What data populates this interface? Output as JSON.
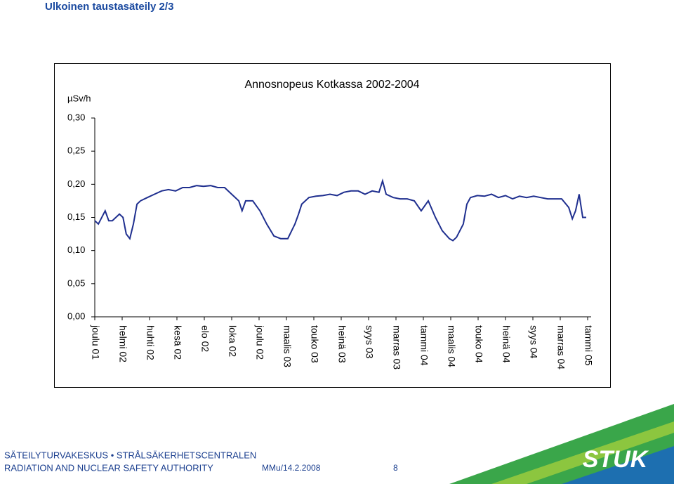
{
  "header": {
    "title": "Ulkoinen taustasäteily 2/3"
  },
  "chart_data": {
    "type": "line",
    "title": "Annosnopeus Kotkassa 2002-2004",
    "y_label": "µSv/h",
    "xlim": [
      0,
      18
    ],
    "xticks": [
      {
        "value": 0,
        "label": "joulu 01"
      },
      {
        "value": 1,
        "label": "helmi 02"
      },
      {
        "value": 2,
        "label": "huhti 02"
      },
      {
        "value": 3,
        "label": "kesä 02"
      },
      {
        "value": 4,
        "label": "elo 02"
      },
      {
        "value": 5,
        "label": "loka 02"
      },
      {
        "value": 6,
        "label": "joulu 02"
      },
      {
        "value": 7,
        "label": "maalis 03"
      },
      {
        "value": 8,
        "label": "touko 03"
      },
      {
        "value": 9,
        "label": "heinä 03"
      },
      {
        "value": 10,
        "label": "syys 03"
      },
      {
        "value": 11,
        "label": "marras 03"
      },
      {
        "value": 12,
        "label": "tammi 04"
      },
      {
        "value": 13,
        "label": "maalis 04"
      },
      {
        "value": 14,
        "label": "touko 04"
      },
      {
        "value": 15,
        "label": "heinä 04"
      },
      {
        "value": 16,
        "label": "syys 04"
      },
      {
        "value": 17,
        "label": "marras 04"
      },
      {
        "value": 18,
        "label": "tammi 05"
      }
    ],
    "ylim": [
      0,
      0.3
    ],
    "yticks": [
      {
        "value": 0,
        "label": "0,00"
      },
      {
        "value": 0.05,
        "label": "0,05"
      },
      {
        "value": 0.1,
        "label": "0,10"
      },
      {
        "value": 0.15,
        "label": "0,15"
      },
      {
        "value": 0.2,
        "label": "0,20"
      },
      {
        "value": 0.25,
        "label": "0,25"
      },
      {
        "value": 0.3,
        "label": "0,30"
      }
    ],
    "color": "#1f2f8f",
    "x": [
      0,
      0.13,
      0.38,
      0.51,
      0.64,
      0.9,
      1.03,
      1.15,
      1.28,
      1.41,
      1.54,
      1.67,
      1.92,
      2.18,
      2.44,
      2.69,
      2.95,
      3.21,
      3.46,
      3.72,
      3.97,
      4.23,
      4.49,
      4.74,
      5,
      5.26,
      5.38,
      5.51,
      5.77,
      6.03,
      6.28,
      6.54,
      6.79,
      7.05,
      7.31,
      7.44,
      7.56,
      7.82,
      8.08,
      8.33,
      8.59,
      8.85,
      9.1,
      9.36,
      9.62,
      9.87,
      10.13,
      10.38,
      10.51,
      10.64,
      10.9,
      11.15,
      11.41,
      11.67,
      11.92,
      12.18,
      12.44,
      12.69,
      12.95,
      13.08,
      13.21,
      13.46,
      13.59,
      13.72,
      13.97,
      14.23,
      14.49,
      14.74,
      15,
      15.26,
      15.51,
      15.77,
      16.03,
      16.28,
      16.54,
      16.79,
      17.05,
      17.31,
      17.44,
      17.56,
      17.69,
      17.82,
      17.95
    ],
    "values": [
      0.145,
      0.14,
      0.16,
      0.145,
      0.145,
      0.155,
      0.15,
      0.125,
      0.118,
      0.14,
      0.17,
      0.175,
      0.18,
      0.185,
      0.19,
      0.192,
      0.19,
      0.195,
      0.195,
      0.198,
      0.197,
      0.198,
      0.195,
      0.195,
      0.185,
      0.175,
      0.16,
      0.175,
      0.175,
      0.16,
      0.14,
      0.122,
      0.118,
      0.118,
      0.14,
      0.155,
      0.17,
      0.18,
      0.182,
      0.183,
      0.185,
      0.183,
      0.188,
      0.19,
      0.19,
      0.185,
      0.19,
      0.188,
      0.205,
      0.185,
      0.18,
      0.178,
      0.178,
      0.175,
      0.16,
      0.175,
      0.15,
      0.13,
      0.118,
      0.115,
      0.12,
      0.14,
      0.17,
      0.18,
      0.183,
      0.182,
      0.185,
      0.18,
      0.183,
      0.178,
      0.182,
      0.18,
      0.182,
      0.18,
      0.178,
      0.178,
      0.178,
      0.165,
      0.148,
      0.16,
      0.185,
      0.15,
      0.15
    ]
  },
  "footer": {
    "org_line1": "SÄTEILYTURVAKESKUS • STRÅLSÄKERHETSCENTRALEN",
    "org_line2": "RADIATION AND NUCLEAR SAFETY AUTHORITY",
    "author_date": "MMu/14.2.2008",
    "page_number": "8",
    "logo": "STUK"
  }
}
